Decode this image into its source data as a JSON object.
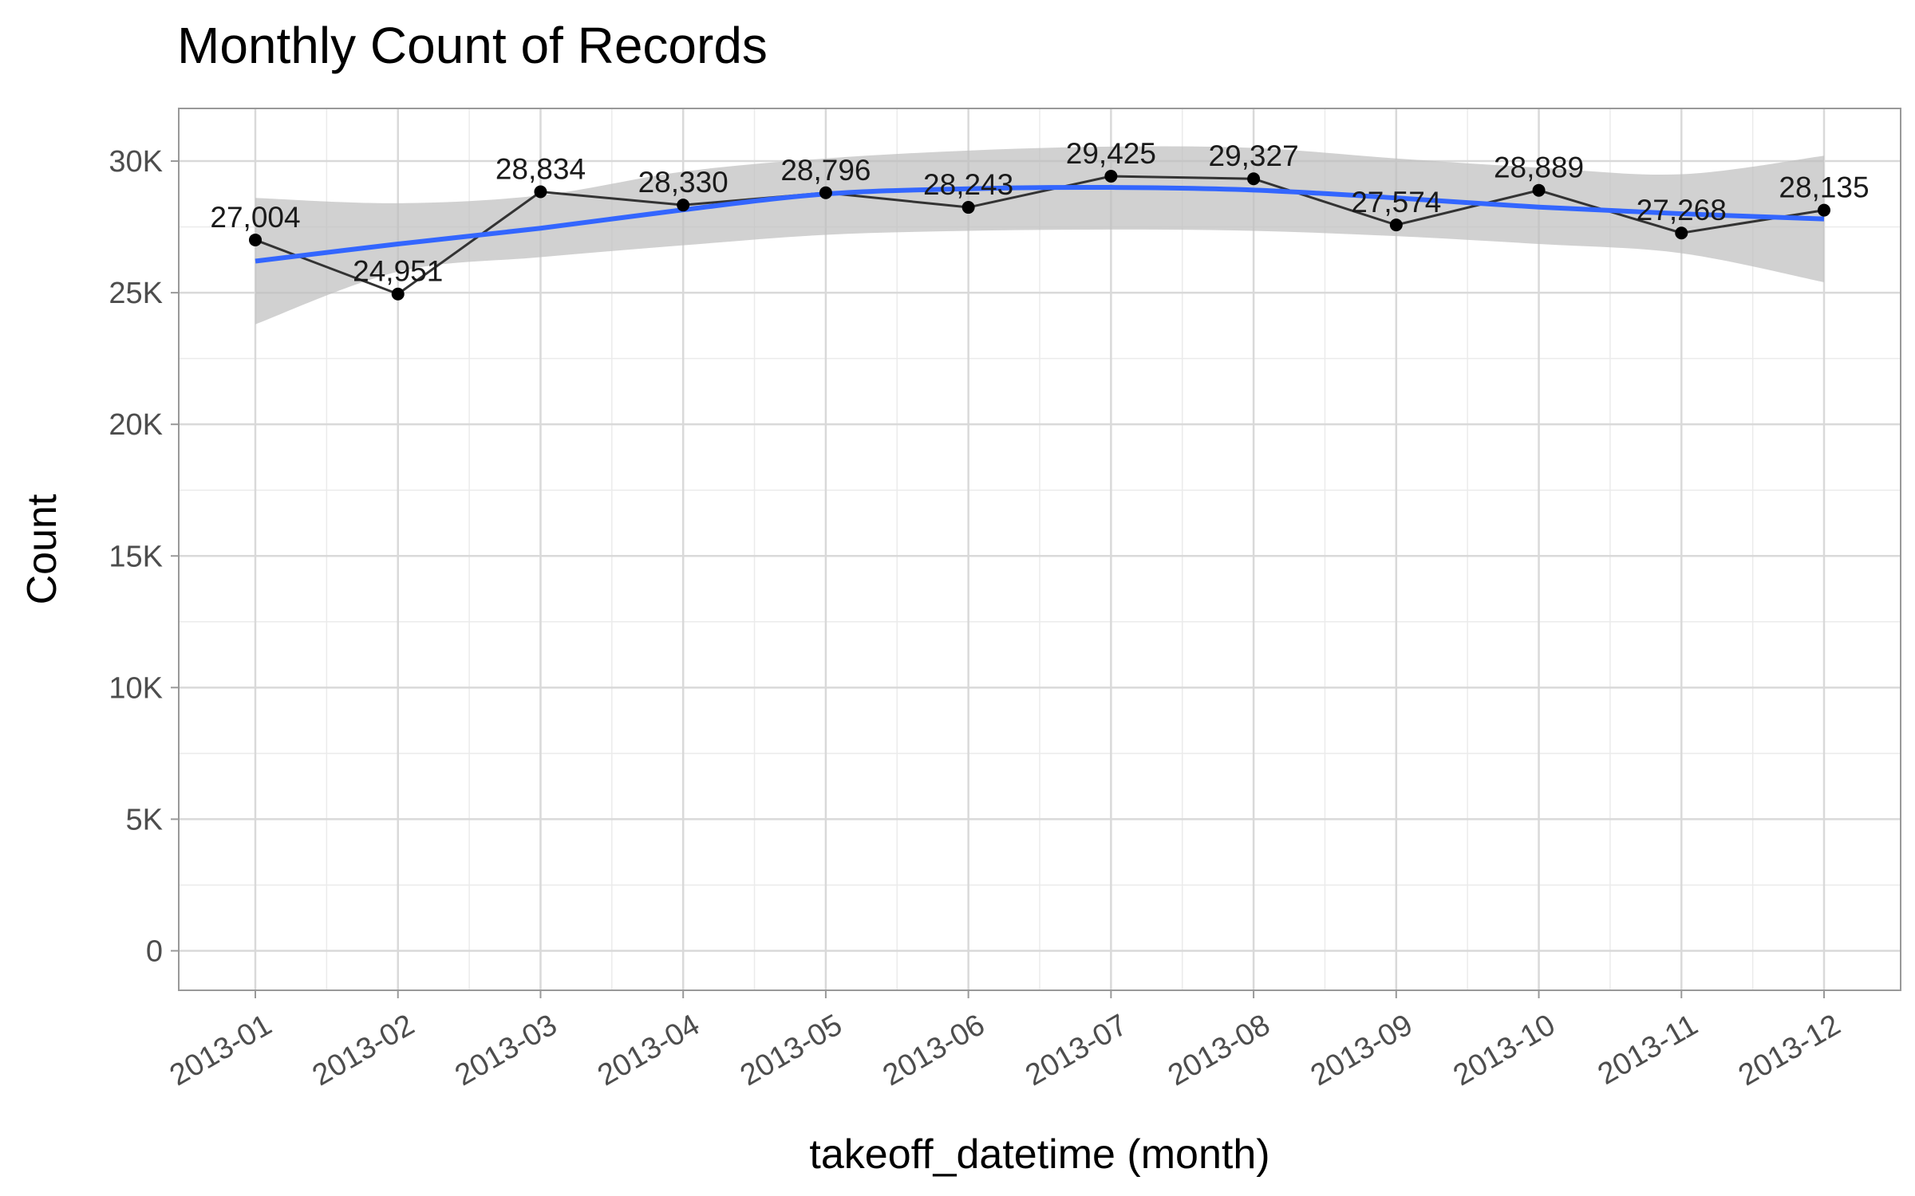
{
  "chart_data": {
    "type": "line",
    "title": "Monthly Count of Records",
    "xlabel": "takeoff_datetime (month)",
    "ylabel": "Count",
    "categories": [
      "2013-01",
      "2013-02",
      "2013-03",
      "2013-04",
      "2013-05",
      "2013-06",
      "2013-07",
      "2013-08",
      "2013-09",
      "2013-10",
      "2013-11",
      "2013-12"
    ],
    "series": [
      {
        "values": [
          27004,
          24951,
          28834,
          28330,
          28796,
          28243,
          29425,
          29327,
          27574,
          28889,
          27268,
          28135
        ],
        "data_labels": [
          "27,004",
          "24,951",
          "28,834",
          "28,330",
          "28,796",
          "28,243",
          "29,425",
          "29,327",
          "27,574",
          "28,889",
          "27,268",
          "28,135"
        ],
        "color": "#333333"
      }
    ],
    "trend": {
      "type": "smooth",
      "color": "#3366FF",
      "values": [
        26200,
        26850,
        27450,
        28150,
        28750,
        28950,
        29000,
        28900,
        28600,
        28250,
        28000,
        27800
      ],
      "band_lower": [
        23800,
        25800,
        26350,
        26800,
        27200,
        27350,
        27400,
        27350,
        27150,
        26850,
        26500,
        25400
      ],
      "band_upper": [
        28600,
        28400,
        28700,
        29600,
        30100,
        30400,
        30550,
        30500,
        30100,
        29750,
        29500,
        30200
      ],
      "band_color": "#bebebe"
    },
    "ylim": [
      -1500,
      32000
    ],
    "yticks": [
      0,
      5000,
      10000,
      15000,
      20000,
      25000,
      30000
    ],
    "ytick_labels": [
      "0",
      "5K",
      "10K",
      "15K",
      "20K",
      "25K",
      "30K"
    ],
    "grid": true,
    "legend": "none"
  }
}
